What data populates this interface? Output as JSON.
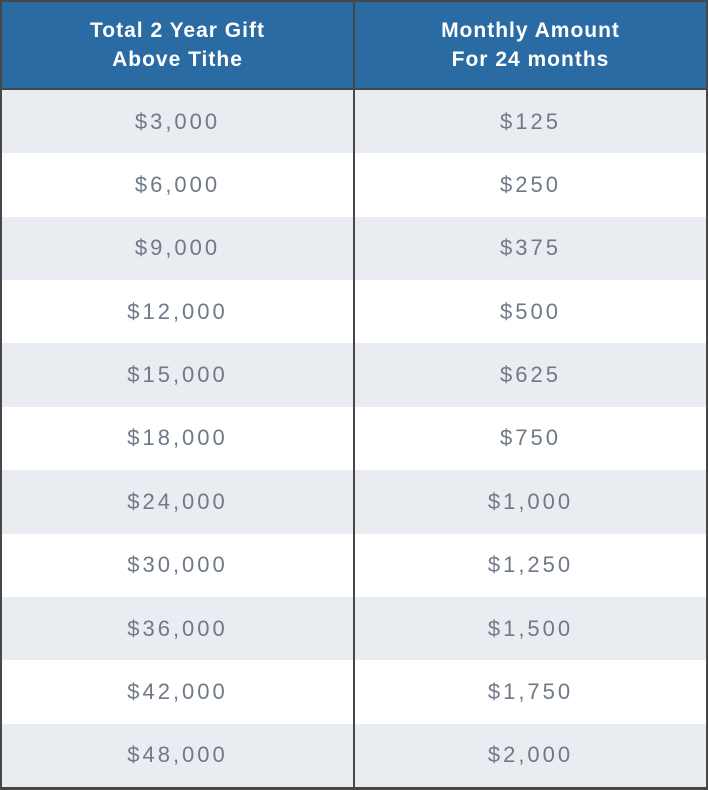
{
  "table": {
    "columns": [
      {
        "line1": "Total 2 Year Gift",
        "line2": "Above Tithe"
      },
      {
        "line1": "Monthly Amount",
        "line2": "For 24 months"
      }
    ],
    "rows": [
      {
        "gift": "$3,000",
        "monthly": "$125"
      },
      {
        "gift": "$6,000",
        "monthly": "$250"
      },
      {
        "gift": "$9,000",
        "monthly": "$375"
      },
      {
        "gift": "$12,000",
        "monthly": "$500"
      },
      {
        "gift": "$15,000",
        "monthly": "$625"
      },
      {
        "gift": "$18,000",
        "monthly": "$750"
      },
      {
        "gift": "$24,000",
        "monthly": "$1,000"
      },
      {
        "gift": "$30,000",
        "monthly": "$1,250"
      },
      {
        "gift": "$36,000",
        "monthly": "$1,500"
      },
      {
        "gift": "$42,000",
        "monthly": "$1,750"
      },
      {
        "gift": "$48,000",
        "monthly": "$2,000"
      }
    ]
  },
  "chart_data": {
    "type": "table",
    "title": "",
    "columns": [
      "Total 2 Year Gift Above Tithe",
      "Monthly Amount For 24 months"
    ],
    "rows": [
      [
        "$3,000",
        "$125"
      ],
      [
        "$6,000",
        "$250"
      ],
      [
        "$9,000",
        "$375"
      ],
      [
        "$12,000",
        "$500"
      ],
      [
        "$15,000",
        "$625"
      ],
      [
        "$18,000",
        "$750"
      ],
      [
        "$24,000",
        "$1,000"
      ],
      [
        "$30,000",
        "$1,250"
      ],
      [
        "$36,000",
        "$1,500"
      ],
      [
        "$42,000",
        "$1,750"
      ],
      [
        "$48,000",
        "$2,000"
      ]
    ],
    "gift_values": [
      3000,
      6000,
      9000,
      12000,
      15000,
      18000,
      24000,
      30000,
      36000,
      42000,
      48000
    ],
    "monthly_values": [
      125,
      250,
      375,
      500,
      625,
      750,
      1000,
      1250,
      1500,
      1750,
      2000
    ]
  },
  "colors": {
    "header_bg": "#2A6BA4",
    "header_text": "#FFFFFF",
    "row_alt_bg": "#E9EDF2",
    "row_bg": "#FFFFFF",
    "cell_text": "#6F7987",
    "border": "#474747"
  }
}
